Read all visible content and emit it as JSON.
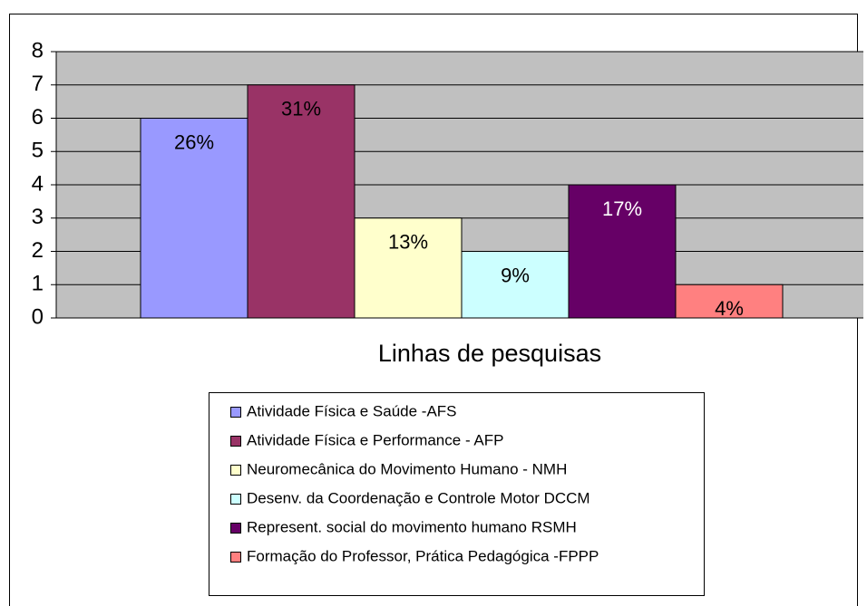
{
  "chart_data": {
    "type": "bar",
    "xlabel": "Linhas de pesquisas",
    "series": [
      {
        "name": "Atividade Física e Saúde  -AFS",
        "color": "#9999ff",
        "values": [
          6
        ],
        "data_labels": [
          "26%"
        ]
      },
      {
        "name": "Atividade Física e Performance - AFP",
        "color": "#993366",
        "values": [
          7
        ],
        "data_labels": [
          "31%"
        ]
      },
      {
        "name": "Neuromecânica do Movimento Humano - NMH",
        "color": "#ffffcc",
        "values": [
          3
        ],
        "data_labels": [
          "13%"
        ]
      },
      {
        "name": "Desenv. da Coordenação e Controle Motor DCCM",
        "color": "#ccffff",
        "values": [
          2
        ],
        "data_labels": [
          "9%"
        ]
      },
      {
        "name": "Represent. social do movimento humano  RSMH",
        "color": "#660066",
        "values": [
          4
        ],
        "data_labels": [
          "17%"
        ]
      },
      {
        "name": "Formação do Professor, Prática Pedagógica -FPPP",
        "color": "#ff8080",
        "values": [
          1
        ],
        "data_labels": [
          "4%"
        ]
      }
    ],
    "ylim": [
      0,
      8
    ],
    "yticks": [
      0,
      1,
      2,
      3,
      4,
      5,
      6,
      7,
      8
    ],
    "grid": true,
    "plot_background": "#c0c0c0"
  }
}
